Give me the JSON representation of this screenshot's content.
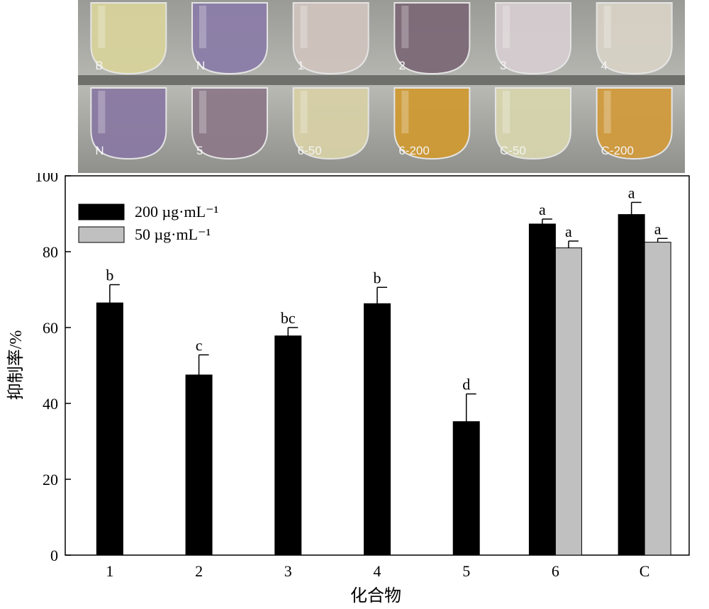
{
  "photo": {
    "row1_labels": [
      "B",
      "N",
      "1",
      "2",
      "3",
      "4"
    ],
    "row2_labels": [
      "N",
      "5",
      "6-50",
      "6-200",
      "C-50",
      "C-200"
    ],
    "row1_colors": [
      "#d8d39c",
      "#8c7ea8",
      "#cfc3bd",
      "#7d6a78",
      "#d6cdd0",
      "#d8d2c6"
    ],
    "row2_colors": [
      "#8a7aa3",
      "#8d7a8a",
      "#d7d0a6",
      "#cf9a34",
      "#d6d5ae",
      "#d19b3e"
    ]
  },
  "chart_data": {
    "type": "bar",
    "categories": [
      "1",
      "2",
      "3",
      "4",
      "5",
      "6",
      "C"
    ],
    "series": [
      {
        "name": "200 µg·mL⁻¹",
        "color": "#000000",
        "values": [
          66.5,
          47.5,
          57.8,
          66.3,
          35.2,
          87.3,
          89.8
        ],
        "errors": [
          4.8,
          5.3,
          2.2,
          4.3,
          7.3,
          1.3,
          3.2
        ],
        "letters": [
          "b",
          "c",
          "bc",
          "b",
          "d",
          "a",
          "a"
        ]
      },
      {
        "name": "50 µg·mL⁻¹",
        "color": "#c0c0c0",
        "values": [
          null,
          null,
          null,
          null,
          null,
          81.0,
          82.5
        ],
        "errors": [
          null,
          null,
          null,
          null,
          null,
          1.8,
          1.0
        ],
        "letters": [
          null,
          null,
          null,
          null,
          null,
          "a",
          "a"
        ]
      }
    ],
    "xlabel": "化合物",
    "ylabel": "抑制率/%",
    "ylim": [
      0,
      100
    ],
    "yticks": [
      0,
      20,
      40,
      60,
      80,
      100
    ],
    "grid": false,
    "legend_position": "top-left"
  }
}
